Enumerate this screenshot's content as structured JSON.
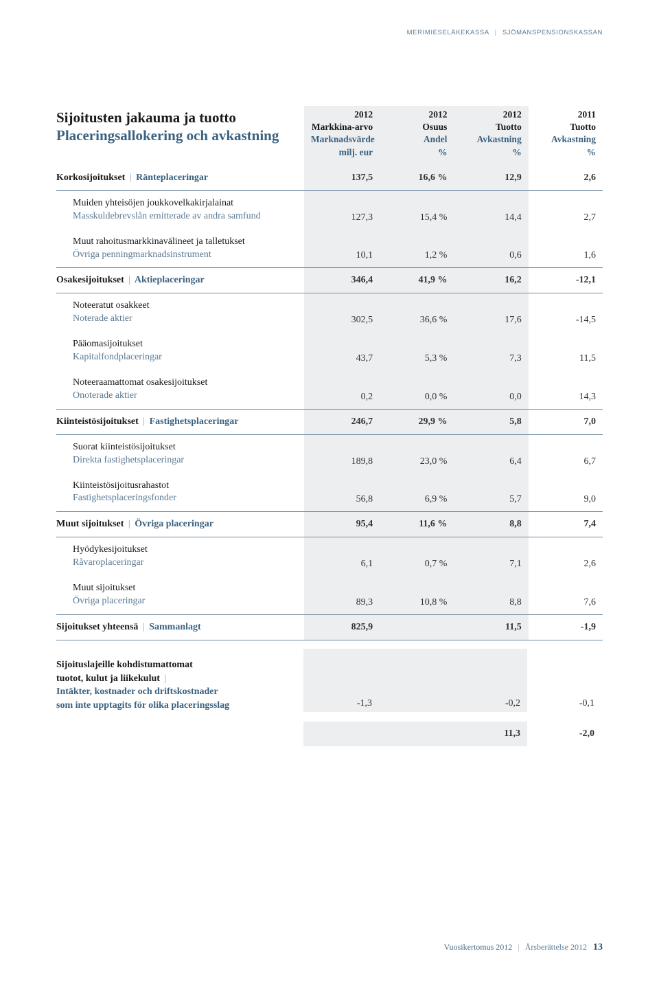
{
  "colors": {
    "text": "#333333",
    "heading": "#1a1a1a",
    "sv": "#3b6280",
    "sv_light": "#5b7a94",
    "shade_bg": "#eceef0",
    "rule": "#6f8aa3",
    "sep": "#a0b4c5",
    "background": "#ffffff"
  },
  "typography": {
    "body_family": "Georgia, serif",
    "body_size_pt": 10.5,
    "title_size_pt": 16,
    "header_brand_size_pt": 7
  },
  "header": {
    "brand_fi": "MERIMIESELÄKEKASSA",
    "brand_sv": "SJÖMANSPENSIONSKASSAN"
  },
  "title": {
    "fi": "Sijoitusten jakauma ja tuotto",
    "sv": "Placeringsallokering och avkastning"
  },
  "columns": [
    {
      "year": "2012",
      "fi": "Markkina-arvo",
      "sv": "Marknadsvärde",
      "unit": "milj. eur"
    },
    {
      "year": "2012",
      "fi": "Osuus",
      "sv": "Andel",
      "unit": "%"
    },
    {
      "year": "2012",
      "fi": "Tuotto",
      "sv": "Avkastning",
      "unit": "%"
    },
    {
      "year": "2011",
      "fi": "Tuotto",
      "sv": "Avkastning",
      "unit": "%"
    }
  ],
  "sections": [
    {
      "label_fi": "Korkosijoitukset",
      "label_sv": "Ränteplaceringar",
      "vals": [
        "137,5",
        "16,6 %",
        "12,9",
        "2,6"
      ],
      "subs": [
        {
          "fi": "Muiden yhteisöjen joukkovelkakirjalainat",
          "sv": "Masskuldebrevslån emitterade av andra samfund",
          "vals": [
            "127,3",
            "15,4 %",
            "14,4",
            "2,7"
          ]
        },
        {
          "fi": "Muut rahoitusmarkkinavälineet ja talletukset",
          "sv": "Övriga penningmarknadsinstrument",
          "vals": [
            "10,1",
            "1,2 %",
            "0,6",
            "1,6"
          ]
        }
      ]
    },
    {
      "label_fi": "Osakesijoitukset",
      "label_sv": "Aktieplaceringar",
      "vals": [
        "346,4",
        "41,9 %",
        "16,2",
        "-12,1"
      ],
      "subs": [
        {
          "fi": "Noteeratut osakkeet",
          "sv": "Noterade aktier",
          "vals": [
            "302,5",
            "36,6 %",
            "17,6",
            "-14,5"
          ]
        },
        {
          "fi": "Pääomasijoitukset",
          "sv": "Kapitalfondplaceringar",
          "vals": [
            "43,7",
            "5,3 %",
            "7,3",
            "11,5"
          ]
        },
        {
          "fi": "Noteeraamattomat osakesijoitukset",
          "sv": "Onoterade aktier",
          "vals": [
            "0,2",
            "0,0 %",
            "0,0",
            "14,3"
          ]
        }
      ]
    },
    {
      "label_fi": "Kiinteistösijoitukset",
      "label_sv": "Fastighetsplaceringar",
      "vals": [
        "246,7",
        "29,9 %",
        "5,8",
        "7,0"
      ],
      "subs": [
        {
          "fi": "Suorat kiinteistösijoitukset",
          "sv": "Direkta fastighetsplaceringar",
          "vals": [
            "189,8",
            "23,0 %",
            "6,4",
            "6,7"
          ]
        },
        {
          "fi": "Kiinteistösijoitusrahastot",
          "sv": "Fastighetsplaceringsfonder",
          "vals": [
            "56,8",
            "6,9 %",
            "5,7",
            "9,0"
          ]
        }
      ]
    },
    {
      "label_fi": "Muut sijoitukset",
      "label_sv": "Övriga placeringar",
      "vals": [
        "95,4",
        "11,6 %",
        "8,8",
        "7,4"
      ],
      "subs": [
        {
          "fi": "Hyödykesijoitukset",
          "sv": "Råvaroplaceringar",
          "vals": [
            "6,1",
            "0,7 %",
            "7,1",
            "2,6"
          ]
        },
        {
          "fi": "Muut sijoitukset",
          "sv": "Övriga placeringar",
          "vals": [
            "89,3",
            "10,8 %",
            "8,8",
            "7,6"
          ]
        }
      ]
    }
  ],
  "total": {
    "label_fi": "Sijoitukset yhteensä",
    "label_sv": "Sammanlagt",
    "vals": [
      "825,9",
      "",
      "11,5",
      "-1,9"
    ]
  },
  "appendix": {
    "fi1": "Sijoituslajeille kohdistumattomat",
    "fi2": "tuotot, kulut ja liikekulut",
    "sv1": "Intäkter, kostnader och driftskostnader",
    "sv2": "som inte upptagits för olika placeringsslag",
    "vals": [
      "-1,3",
      "",
      "-0,2",
      "-0,1"
    ]
  },
  "final": {
    "vals": [
      "",
      "",
      "11,3",
      "-2,0"
    ]
  },
  "footer": {
    "fi": "Vuosikertomus 2012",
    "sv": "Årsberättelse 2012",
    "page": "13"
  }
}
